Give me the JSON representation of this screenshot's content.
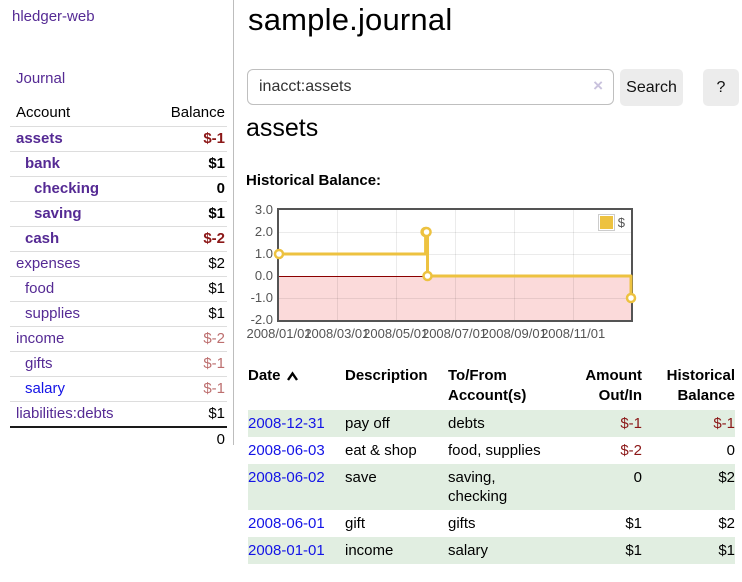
{
  "app": {
    "brand": "hledger-web",
    "nav": {
      "journal": "Journal"
    }
  },
  "colors": {
    "link_purple": "#552a94",
    "link_blue": "#1414e6",
    "negative_strong": "#8b1717",
    "negative_soft": "#bd6f6f",
    "row_highlight_green": "#e1eee1",
    "chart_series_gold": "#edc240",
    "chart_negative_region_pink": "#fbdada",
    "chart_zero_line_red": "#8b0000"
  },
  "sidebar": {
    "headers": {
      "account": "Account",
      "balance": "Balance"
    },
    "accounts": [
      {
        "name": "assets",
        "balance": "$-1",
        "indent": 0,
        "bold": true,
        "balance_color": "neg-strong"
      },
      {
        "name": "bank",
        "balance": "$1",
        "indent": 1,
        "bold": true,
        "balance_color": "black"
      },
      {
        "name": "checking",
        "balance": "0",
        "indent": 2,
        "bold": true,
        "balance_color": "black"
      },
      {
        "name": "saving",
        "balance": "$1",
        "indent": 2,
        "bold": true,
        "balance_color": "black"
      },
      {
        "name": "cash",
        "balance": "$-2",
        "indent": 1,
        "bold": true,
        "balance_color": "neg-strong"
      },
      {
        "name": "expenses",
        "balance": "$2",
        "indent": 0,
        "bold": false,
        "balance_color": "black"
      },
      {
        "name": "food",
        "balance": "$1",
        "indent": 1,
        "bold": false,
        "balance_color": "black"
      },
      {
        "name": "supplies",
        "balance": "$1",
        "indent": 1,
        "bold": false,
        "balance_color": "black"
      },
      {
        "name": "income",
        "balance": "$-2",
        "indent": 0,
        "bold": false,
        "balance_color": "neg-soft"
      },
      {
        "name": "gifts",
        "balance": "$-1",
        "indent": 1,
        "bold": false,
        "balance_color": "neg-soft"
      },
      {
        "name": "salary",
        "balance": "$-1",
        "indent": 1,
        "bold": false,
        "balance_color": "neg-soft",
        "link_color": "blue"
      },
      {
        "name": "liabilities:debts",
        "balance": "$1",
        "indent": 0,
        "bold": false,
        "balance_color": "black"
      }
    ],
    "total": "0"
  },
  "header": {
    "title": "sample.journal"
  },
  "search": {
    "value": "inacct:assets",
    "clear_icon": "×",
    "button_label": "Search",
    "help_label": "?"
  },
  "account_page": {
    "heading": "assets",
    "chart_title": "Historical Balance:"
  },
  "chart_data": {
    "type": "line",
    "title": "Historical Balance",
    "step": true,
    "xlim": [
      "2008-01-01",
      "2008-12-31"
    ],
    "ylim": [
      -2.0,
      3.0
    ],
    "yticks": [
      3.0,
      2.0,
      1.0,
      0.0,
      -1.0,
      -2.0
    ],
    "xticks": [
      "2008/01/01",
      "2008/03/01",
      "2008/05/01",
      "2008/07/01",
      "2008/09/01",
      "2008/11/01"
    ],
    "grid": true,
    "legend_position": "top-right",
    "series": [
      {
        "name": "$",
        "color": "#edc240",
        "points": [
          {
            "x": "2008-01-01",
            "y": 1
          },
          {
            "x": "2008-06-01",
            "y": 2
          },
          {
            "x": "2008-06-02",
            "y": 2
          },
          {
            "x": "2008-06-03",
            "y": 0
          },
          {
            "x": "2008-12-31",
            "y": -1
          }
        ]
      }
    ],
    "negative_region_fill": "#fbdada",
    "zero_line_color": "#8b0000"
  },
  "register": {
    "columns": [
      {
        "key": "date",
        "label": "Date",
        "sort": "asc"
      },
      {
        "key": "description",
        "label": "Description"
      },
      {
        "key": "accounts",
        "label": "To/From Account(s)"
      },
      {
        "key": "amount",
        "label": "Amount Out/In",
        "align": "right"
      },
      {
        "key": "balance",
        "label": "Historical Balance",
        "align": "right"
      }
    ],
    "rows": [
      {
        "date": "2008-12-31",
        "description": "pay off",
        "accounts": "debts",
        "amount": "$-1",
        "balance": "$-1"
      },
      {
        "date": "2008-06-03",
        "description": "eat & shop",
        "accounts": "food, supplies",
        "amount": "$-2",
        "balance": "0"
      },
      {
        "date": "2008-06-02",
        "description": "save",
        "accounts": "saving, checking",
        "amount": "0",
        "balance": "$2"
      },
      {
        "date": "2008-06-01",
        "description": "gift",
        "accounts": "gifts",
        "amount": "$1",
        "balance": "$2"
      },
      {
        "date": "2008-01-01",
        "description": "income",
        "accounts": "salary",
        "amount": "$1",
        "balance": "$1"
      }
    ]
  }
}
